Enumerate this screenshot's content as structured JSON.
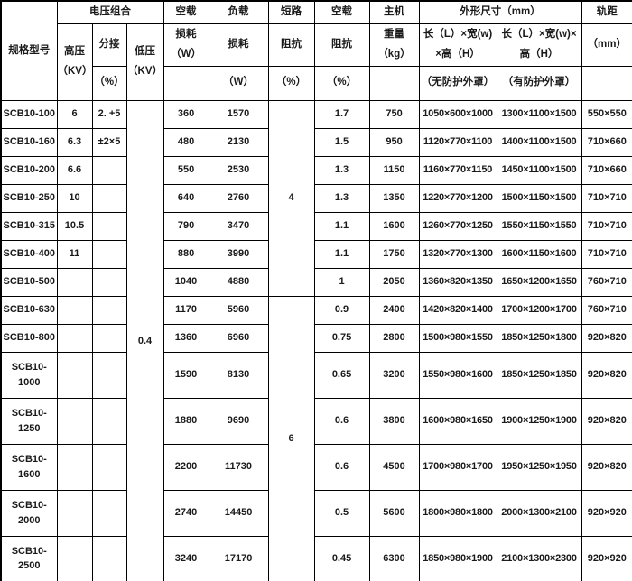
{
  "table": {
    "header": {
      "spec_model": "规格型号",
      "voltage_group": "电压组合",
      "hv_label": "高压\n（KV）",
      "tap_label": "分接",
      "tap_unit": "（%）",
      "lv_label": "低压\n（KV）",
      "noload_group": "空载",
      "noload_loss_label": "损耗\n（W）",
      "load_group": "负载",
      "load_loss_label": "损耗",
      "load_loss_unit": "（W）",
      "short_group": "短路",
      "short_impedance_label": "阻抗",
      "short_impedance_unit": "（%）",
      "noload2_group": "空载",
      "noload_impedance_label": "阻抗",
      "noload_impedance_unit": "（%）",
      "host_group": "主机",
      "weight_label": "重量\n（kg）",
      "dims_group": "外形尺寸（mm）",
      "dims_open_label": "长（L）×宽(w)\n×高（H）",
      "dims_open_note": "（无防护外罩）",
      "dims_enclosed_label": "长（L）×宽(w)×\n高（H）",
      "dims_enclosed_note": "（有防护外罩）",
      "gauge_label": "轨距",
      "gauge_unit": "（mm）"
    },
    "merged": {
      "lv_value": "0.4",
      "short_impedance_groups": [
        {
          "value": "4",
          "row_start": 1,
          "row_end": 7
        },
        {
          "value": "6",
          "row_start": 8,
          "row_end": 14
        }
      ]
    },
    "rows": [
      {
        "model": "SCB10-100",
        "hv": "6",
        "tap": "2. +5",
        "noload_loss": "360",
        "load_loss": "1570",
        "noload_imp": "1.7",
        "weight": "750",
        "dims_no_enclosure": "1050×600×1000",
        "dims_with_enclosure": "1300×1100×1500",
        "gauge": "550×550"
      },
      {
        "model": "SCB10-160",
        "hv": "6.3",
        "tap": "±2×5",
        "noload_loss": "480",
        "load_loss": "2130",
        "noload_imp": "1.5",
        "weight": "950",
        "dims_no_enclosure": "1120×770×1100",
        "dims_with_enclosure": "1400×1100×1500",
        "gauge": "710×660"
      },
      {
        "model": "SCB10-200",
        "hv": "6.6",
        "tap": "",
        "noload_loss": "550",
        "load_loss": "2530",
        "noload_imp": "1.3",
        "weight": "1150",
        "dims_no_enclosure": "1160×770×1150",
        "dims_with_enclosure": "1450×1100×1500",
        "gauge": "710×660"
      },
      {
        "model": "SCB10-250",
        "hv": "10",
        "tap": "",
        "noload_loss": "640",
        "load_loss": "2760",
        "noload_imp": "1.3",
        "weight": "1350",
        "dims_no_enclosure": "1220×770×1200",
        "dims_with_enclosure": "1500×1150×1500",
        "gauge": "710×710"
      },
      {
        "model": "SCB10-315",
        "hv": "10.5",
        "tap": "",
        "noload_loss": "790",
        "load_loss": "3470",
        "noload_imp": "1.1",
        "weight": "1600",
        "dims_no_enclosure": "1260×770×1250",
        "dims_with_enclosure": "1550×1150×1550",
        "gauge": "710×710"
      },
      {
        "model": "SCB10-400",
        "hv": "11",
        "tap": "",
        "noload_loss": "880",
        "load_loss": "3990",
        "noload_imp": "1.1",
        "weight": "1750",
        "dims_no_enclosure": "1320×770×1300",
        "dims_with_enclosure": "1600×1150×1600",
        "gauge": "710×710"
      },
      {
        "model": "SCB10-500",
        "hv": "",
        "tap": "",
        "noload_loss": "1040",
        "load_loss": "4880",
        "noload_imp": "1",
        "weight": "2050",
        "dims_no_enclosure": "1360×820×1350",
        "dims_with_enclosure": "1650×1200×1650",
        "gauge": "760×710"
      },
      {
        "model": "SCB10-630",
        "hv": "",
        "tap": "",
        "noload_loss": "1170",
        "load_loss": "5960",
        "noload_imp": "0.9",
        "weight": "2400",
        "dims_no_enclosure": "1420×820×1400",
        "dims_with_enclosure": "1700×1200×1700",
        "gauge": "760×710"
      },
      {
        "model": "SCB10-800",
        "hv": "",
        "tap": "",
        "noload_loss": "1360",
        "load_loss": "6960",
        "noload_imp": "0.75",
        "weight": "2800",
        "dims_no_enclosure": "1500×980×1550",
        "dims_with_enclosure": "1850×1250×1800",
        "gauge": "920×820"
      },
      {
        "model": "SCB10-\n1000",
        "hv": "",
        "tap": "",
        "noload_loss": "1590",
        "load_loss": "8130",
        "noload_imp": "0.65",
        "weight": "3200",
        "dims_no_enclosure": "1550×980×1600",
        "dims_with_enclosure": "1850×1250×1850",
        "gauge": "920×820"
      },
      {
        "model": "SCB10-\n1250",
        "hv": "",
        "tap": "",
        "noload_loss": "1880",
        "load_loss": "9690",
        "noload_imp": "0.6",
        "weight": "3800",
        "dims_no_enclosure": "1600×980×1650",
        "dims_with_enclosure": "1900×1250×1900",
        "gauge": "920×820"
      },
      {
        "model": "SCB10-\n1600",
        "hv": "",
        "tap": "",
        "noload_loss": "2200",
        "load_loss": "11730",
        "noload_imp": "0.6",
        "weight": "4500",
        "dims_no_enclosure": "1700×980×1700",
        "dims_with_enclosure": "1950×1250×1950",
        "gauge": "920×820"
      },
      {
        "model": "SCB10-\n2000",
        "hv": "",
        "tap": "",
        "noload_loss": "2740",
        "load_loss": "14450",
        "noload_imp": "0.5",
        "weight": "5600",
        "dims_no_enclosure": "1800×980×1800",
        "dims_with_enclosure": "2000×1300×2100",
        "gauge": "920×920"
      },
      {
        "model": "SCB10-\n2500",
        "hv": "",
        "tap": "",
        "noload_loss": "3240",
        "load_loss": "17170",
        "noload_imp": "0.45",
        "weight": "6300",
        "dims_no_enclosure": "1850×980×1900",
        "dims_with_enclosure": "2100×1300×2300",
        "gauge": "920×920"
      }
    ]
  }
}
